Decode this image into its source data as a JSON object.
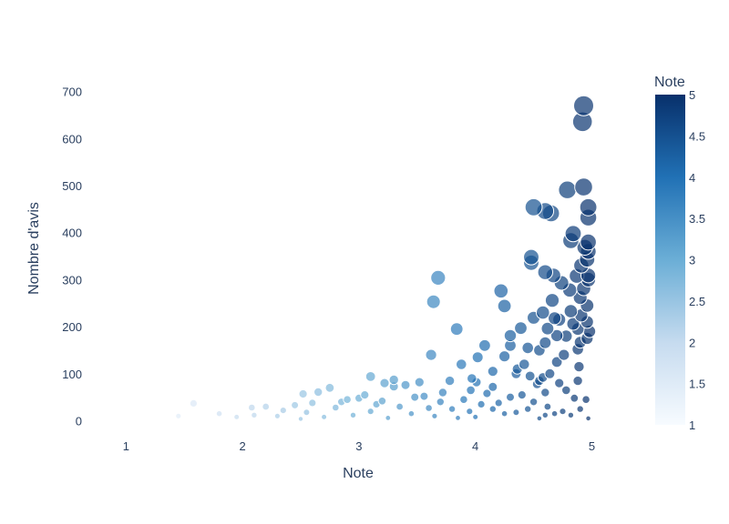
{
  "chart_data": {
    "type": "scatter",
    "title": "",
    "xlabel": "Note",
    "ylabel": "Nombre d'avis",
    "xlim": [
      0.7,
      5.2
    ],
    "ylim": [
      -30,
      740
    ],
    "x_ticks": [
      1,
      2,
      3,
      4,
      5
    ],
    "y_ticks": [
      0,
      100,
      200,
      300,
      400,
      500,
      600,
      700
    ],
    "marker_size_encodes": "Nombre d'avis",
    "marker_color_encodes": "Note",
    "grid": false,
    "legend": "none",
    "colorbar": {
      "title": "Note",
      "placement": "right",
      "range": [
        1,
        5
      ],
      "ticks": [
        1,
        1.5,
        2,
        2.5,
        3,
        3.5,
        4,
        4.5,
        5
      ],
      "colorscale": [
        "#f7fbff",
        "#c6dbef",
        "#6baed6",
        "#2171b5",
        "#08306b"
      ]
    },
    "points": {
      "x": [
        4.93,
        4.92,
        4.93,
        4.79,
        4.97,
        4.5,
        4.6,
        4.65,
        4.97,
        4.84,
        4.82,
        4.97,
        4.94,
        4.97,
        4.48,
        4.48,
        4.96,
        4.91,
        4.6,
        4.67,
        4.97,
        4.87,
        4.74,
        4.97,
        3.68,
        4.93,
        4.22,
        4.81,
        4.9,
        3.64,
        4.66,
        4.25,
        4.96,
        4.58,
        4.82,
        4.91,
        4.96,
        4.72,
        4.84,
        4.68,
        4.5,
        4.88,
        4.98,
        4.62,
        4.39,
        4.78,
        4.96,
        4.7,
        4.3,
        4.6,
        4.9,
        4.3,
        3.84,
        4.45,
        4.08,
        4.88,
        4.55,
        4.76,
        4.25,
        3.62,
        4.02,
        4.42,
        4.7,
        3.88,
        4.36,
        4.15,
        4.64,
        4.89,
        4.35,
        4.47,
        4.58,
        3.97,
        4.55,
        3.3,
        3.1,
        4.72,
        4.01,
        3.78,
        3.52,
        3.22,
        4.53,
        4.15,
        3.4,
        2.75,
        3.3,
        2.65,
        3.96,
        2.52,
        3.72,
        4.6,
        4.88,
        3.05,
        3.56,
        4.1,
        3.0,
        3.48,
        4.4,
        4.78,
        2.9,
        3.9,
        4.3,
        3.2,
        2.85,
        3.7,
        4.5,
        4.85,
        2.6,
        3.15,
        4.2,
        2.45,
        4.05,
        4.62,
        2.2,
        4.95,
        3.35,
        2.8,
        3.6,
        2.08,
        4.15,
        3.8,
        2.35,
        4.45,
        3.95,
        1.58,
        3.1,
        4.75,
        2.55,
        4.35,
        4.9,
        3.45,
        1.8,
        2.1,
        4.25,
        2.95,
        4.68,
        4.6,
        1.45,
        3.65,
        4.0,
        2.3,
        4.82,
        1.95,
        2.7,
        3.25,
        3.85,
        4.55,
        4.97,
        2.5
      ],
      "y": [
        670,
        636,
        497,
        491,
        454,
        454,
        446,
        441,
        432,
        398,
        383,
        380,
        369,
        360,
        348,
        336,
        343,
        330,
        316,
        309,
        309,
        308,
        293,
        300,
        304,
        281,
        276,
        278,
        262,
        253,
        256,
        244,
        245,
        230,
        233,
        224,
        210,
        215,
        206,
        218,
        219,
        195,
        190,
        196,
        197,
        180,
        175,
        181,
        181,
        166,
        167,
        160,
        195,
        155,
        160,
        152,
        150,
        140,
        137,
        140,
        135,
        120,
        125,
        120,
        110,
        105,
        100,
        115,
        100,
        95,
        92,
        90,
        85,
        87,
        94,
        80,
        82,
        85,
        82,
        80,
        78,
        72,
        76,
        70,
        73,
        61,
        65,
        57,
        60,
        60,
        85,
        55,
        52,
        58,
        48,
        50,
        55,
        65,
        45,
        45,
        50,
        42,
        40,
        40,
        40,
        48,
        38,
        35,
        38,
        33,
        35,
        30,
        30,
        45,
        30,
        28,
        27,
        28,
        25,
        25,
        22,
        25,
        20,
        37,
        20,
        20,
        18,
        18,
        25,
        15,
        15,
        12,
        15,
        12,
        15,
        12,
        10,
        10,
        8,
        10,
        12,
        8,
        8,
        6,
        6,
        5,
        5,
        4
      ]
    }
  }
}
